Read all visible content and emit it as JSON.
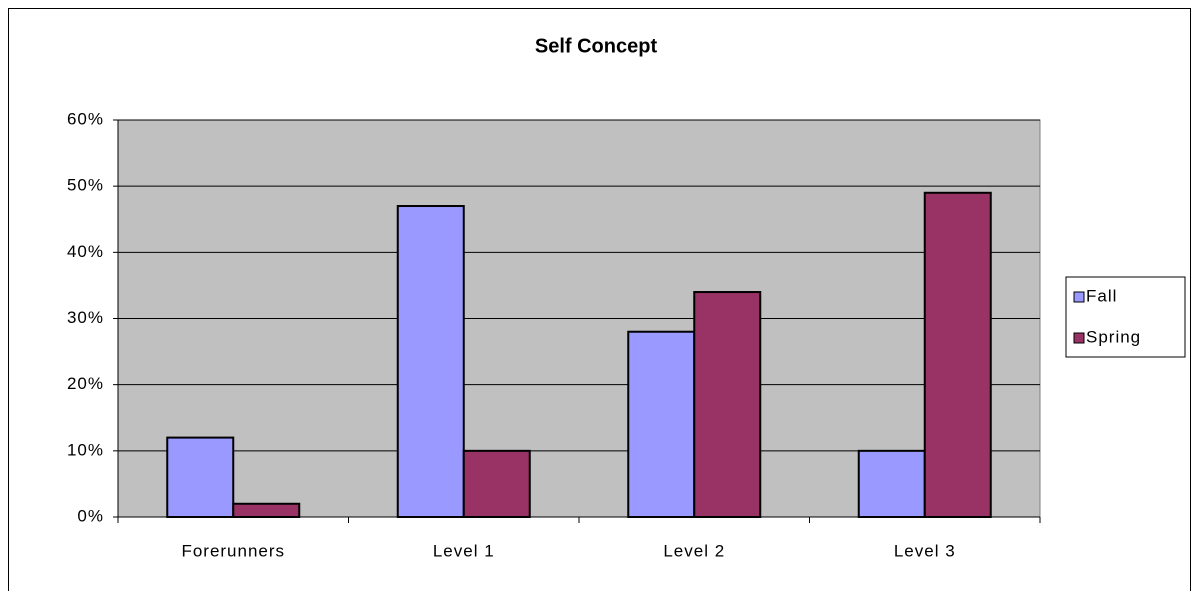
{
  "chart_data": {
    "type": "bar",
    "title": "Self Concept",
    "categories": [
      "Forerunners",
      "Level 1",
      "Level 2",
      "Level 3"
    ],
    "series": [
      {
        "name": "Fall",
        "color": "#9999ff",
        "values": [
          12,
          47,
          28,
          10
        ]
      },
      {
        "name": "Spring",
        "color": "#993366",
        "values": [
          2,
          10,
          34,
          49
        ]
      }
    ],
    "ylim": [
      0,
      60
    ],
    "yticks": [
      {
        "value": 0,
        "label": "0%"
      },
      {
        "value": 10,
        "label": "10%"
      },
      {
        "value": 20,
        "label": "20%"
      },
      {
        "value": 30,
        "label": "30%"
      },
      {
        "value": 40,
        "label": "40%"
      },
      {
        "value": 50,
        "label": "50%"
      },
      {
        "value": 60,
        "label": "60%"
      }
    ],
    "grid": true,
    "legend": "right",
    "plot_background": "#c0c0c0"
  }
}
